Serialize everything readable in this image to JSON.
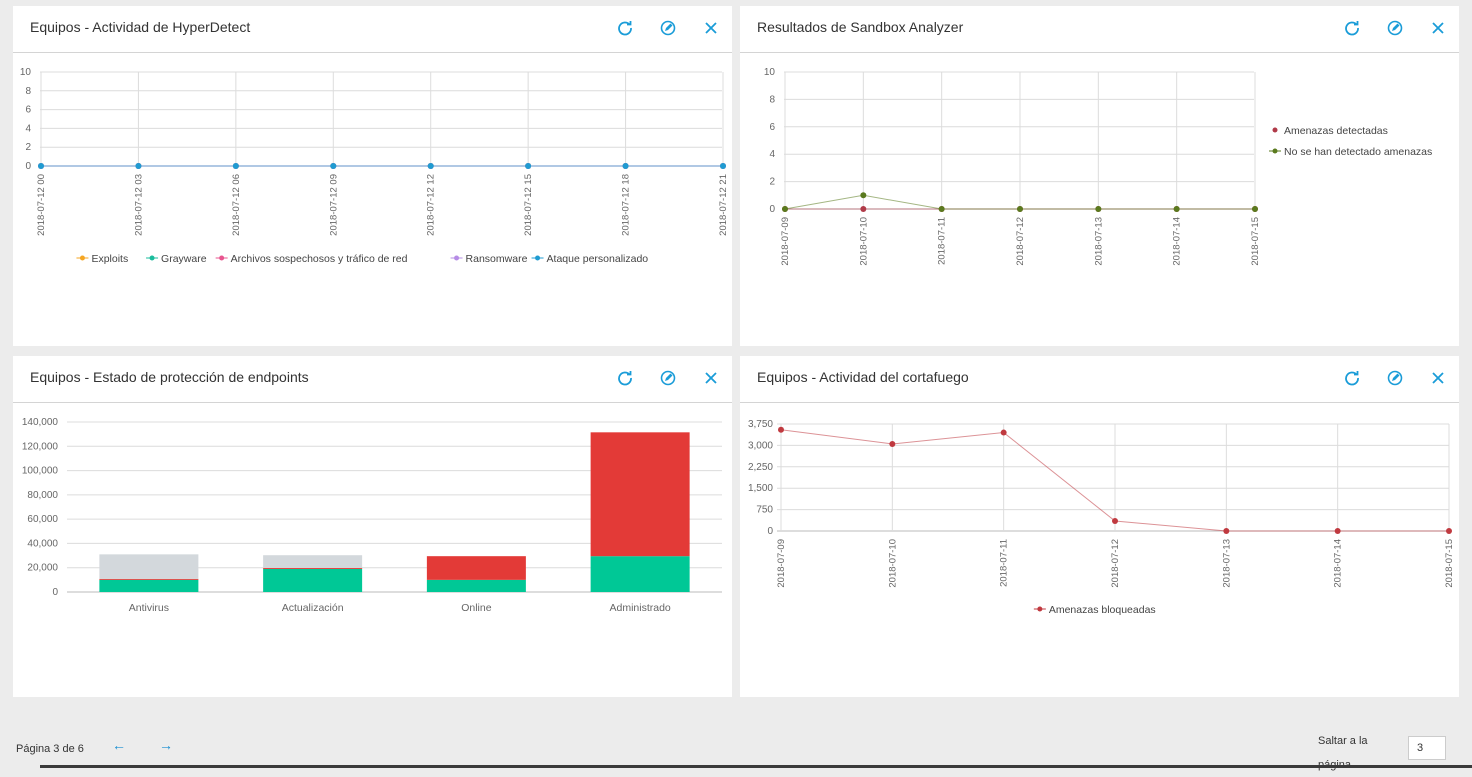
{
  "colors": {
    "accent": "#1a9cd8",
    "grid": "#e0e0e0",
    "axis": "#bbbbbb",
    "text": "#666666"
  },
  "header_buttons": {
    "refresh_icon": "refresh-icon",
    "settings_icon": "edit-icon",
    "close_icon": "close-icon"
  },
  "panels": [
    {
      "title": "Equipos - Actividad de HyperDetect",
      "chart_data": {
        "type": "line",
        "x": [
          "2018-07-12 00",
          "2018-07-12 03",
          "2018-07-12 06",
          "2018-07-12 09",
          "2018-07-12 12",
          "2018-07-12 15",
          "2018-07-12 18",
          "2018-07-12 21"
        ],
        "yticks": [
          "10",
          "8",
          "6",
          "4",
          "2",
          "0"
        ],
        "ylim": [
          0,
          10
        ],
        "series": [
          {
            "name": "Exploits",
            "color": "#f5a623",
            "values": [
              0,
              0,
              0,
              0,
              0,
              0,
              0,
              0
            ]
          },
          {
            "name": "Grayware",
            "color": "#1abc9c",
            "values": [
              0,
              0,
              0,
              0,
              0,
              0,
              0,
              0
            ]
          },
          {
            "name": "Archivos sospechosos y tráfico de red",
            "color": "#e8558f",
            "values": [
              0,
              0,
              0,
              0,
              0,
              0,
              0,
              0
            ]
          },
          {
            "name": "Ransomware",
            "color": "#b68ce6",
            "values": [
              0,
              0,
              0,
              0,
              0,
              0,
              0,
              0
            ]
          },
          {
            "name": "Ataque personalizado",
            "color": "#1f9bd1",
            "values": [
              0,
              0,
              0,
              0,
              0,
              0,
              0,
              0
            ]
          }
        ],
        "legend": "bottom"
      }
    },
    {
      "title": "Resultados de Sandbox Analyzer",
      "chart_data": {
        "type": "line",
        "x": [
          "2018-07-09",
          "2018-07-10",
          "2018-07-11",
          "2018-07-12",
          "2018-07-13",
          "2018-07-14",
          "2018-07-15"
        ],
        "yticks": [
          "10",
          "8",
          "6",
          "4",
          "2",
          "0"
        ],
        "ylim": [
          0,
          10
        ],
        "series": [
          {
            "name": "Amenazas detectadas",
            "color": "#b03a48",
            "values": [
              0,
              0,
              0,
              0,
              0,
              0,
              0
            ]
          },
          {
            "name": "No se han detectado amenazas",
            "color": "#5a7a1e",
            "values": [
              0,
              1,
              0,
              0,
              0,
              0,
              0
            ]
          }
        ],
        "legend": "right"
      }
    },
    {
      "title": "Equipos - Estado de protección de endpoints",
      "chart_data": {
        "type": "bar",
        "categories": [
          "Antivirus",
          "Actualización",
          "Online",
          "Administrado"
        ],
        "yticks": [
          "140,000",
          "120,000",
          "100,000",
          "80,000",
          "60,000",
          "40,000",
          "20,000",
          "0"
        ],
        "ylim": [
          0,
          140000
        ],
        "series": [
          {
            "name": "",
            "color": "#00c896",
            "values": [
              10000,
              19000,
              10000,
              29500
            ]
          },
          {
            "name": "",
            "color": "#e33a37",
            "values": [
              800,
              800,
              19500,
              102000
            ]
          },
          {
            "name": "",
            "color": "#d3d8dc",
            "values": [
              20200,
              10500,
              0,
              0
            ]
          }
        ]
      }
    },
    {
      "title": "Equipos - Actividad del cortafuego",
      "chart_data": {
        "type": "line",
        "x": [
          "2018-07-09",
          "2018-07-10",
          "2018-07-11",
          "2018-07-12",
          "2018-07-13",
          "2018-07-14",
          "2018-07-15"
        ],
        "yticks": [
          "3,750",
          "3,000",
          "2,250",
          "1,500",
          "750",
          "0"
        ],
        "ylim": [
          0,
          3750
        ],
        "series": [
          {
            "name": "Amenazas bloqueadas",
            "color": "#c0393f",
            "values": [
              3550,
              3050,
              3450,
              350,
              0,
              0,
              0
            ]
          }
        ],
        "legend": "bottom"
      }
    }
  ],
  "pagination": {
    "page_text": "Página 3 de 6",
    "prev": "←",
    "next": "→",
    "jump_label": "Saltar a la página",
    "jump_value": "3"
  }
}
